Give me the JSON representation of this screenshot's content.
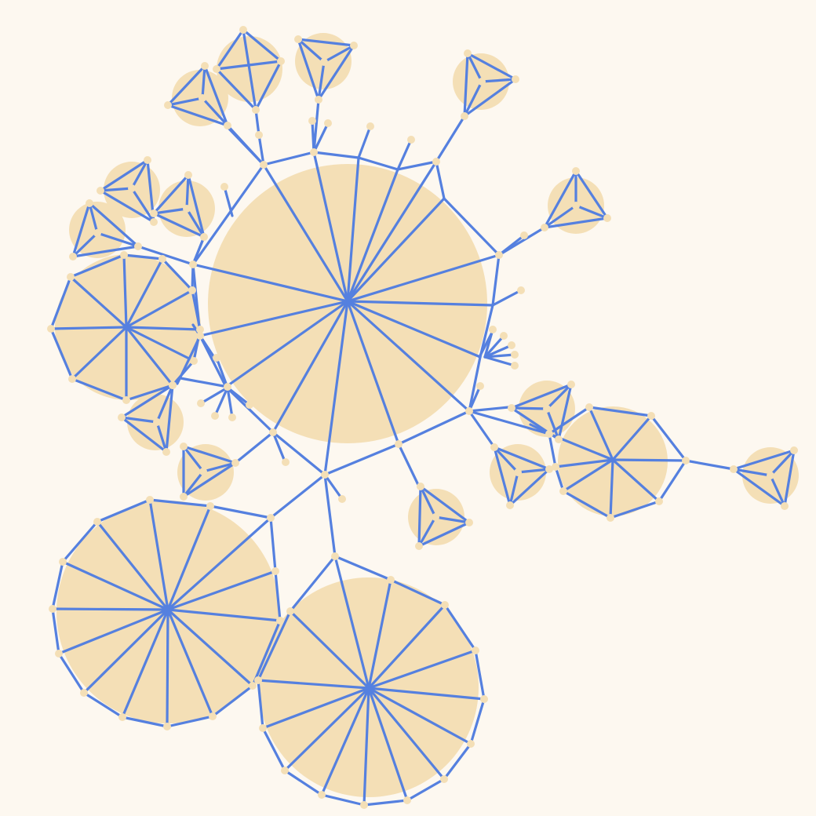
{
  "diagram": {
    "type": "network-graph",
    "colors": {
      "background": "#fdf8f0",
      "disc": "#f4dfb6",
      "edge": "#5580df",
      "node": "#f4dfb6"
    },
    "wheel_groups": [
      {
        "id": "central",
        "spokes": 16
      },
      {
        "id": "left-decagon",
        "spokes": 10
      },
      {
        "id": "lower-left",
        "spokes": 16
      },
      {
        "id": "lower-right",
        "spokes": 16
      },
      {
        "id": "right-octagon",
        "spokes": 8
      }
    ],
    "tetrahedron_count": 13,
    "starburst_count": 2
  }
}
